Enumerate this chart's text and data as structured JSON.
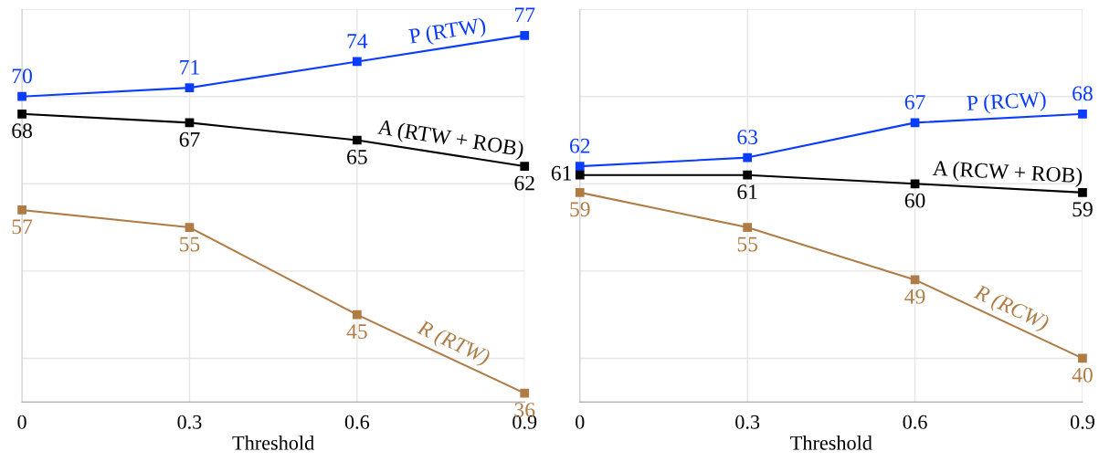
{
  "chart_data": [
    {
      "type": "line",
      "xlabel": "Threshold",
      "x": [
        0,
        0.3,
        0.6,
        0.9
      ],
      "xlim": [
        0,
        0.9
      ],
      "xticks": [
        0,
        0.3,
        0.6,
        0.9
      ],
      "ylim": [
        35,
        80
      ],
      "yticks": [
        {
          "value": 40,
          "label": null
        },
        {
          "value": 50,
          "label": null
        },
        {
          "value": 60,
          "label": null
        },
        {
          "value": 70,
          "label": null
        },
        {
          "value": 80,
          "label": null
        }
      ],
      "tick_labels": "x",
      "grid": true,
      "marker": "square",
      "line_style": "solid",
      "data_labels": true,
      "series": [
        {
          "name": "P (RTW)",
          "color": "#0a3cff",
          "values": [
            70,
            71,
            74,
            77
          ]
        },
        {
          "name": "A (RTW + ROB)",
          "color": "#000000",
          "values": [
            68,
            67,
            65,
            62
          ]
        },
        {
          "name": "R (RTW)",
          "color": "#b07c45",
          "values": [
            57,
            55,
            45,
            36
          ]
        }
      ]
    },
    {
      "type": "line",
      "xlabel": "Threshold",
      "x": [
        0,
        0.3,
        0.6,
        0.9
      ],
      "xlim": [
        0,
        0.9
      ],
      "xticks": [
        0,
        0.3,
        0.6,
        0.9
      ],
      "ylim": [
        35,
        80
      ],
      "yticks": [
        {
          "value": 40,
          "label": null
        },
        {
          "value": 50,
          "label": null
        },
        {
          "value": 60,
          "label": null
        },
        {
          "value": 70,
          "label": null
        },
        {
          "value": 80,
          "label": null
        }
      ],
      "tick_labels": "x",
      "grid": true,
      "marker": "square",
      "line_style": "solid",
      "data_labels": true,
      "series": [
        {
          "name": "P (RCW)",
          "color": "#0a3cff",
          "values": [
            62,
            63,
            67,
            68
          ]
        },
        {
          "name": "A (RCW + ROB)",
          "color": "#000000",
          "values": [
            61,
            61,
            60,
            59
          ]
        },
        {
          "name": "R (RCW)",
          "color": "#b07c45",
          "values": [
            59,
            55,
            49,
            40
          ]
        }
      ]
    }
  ]
}
